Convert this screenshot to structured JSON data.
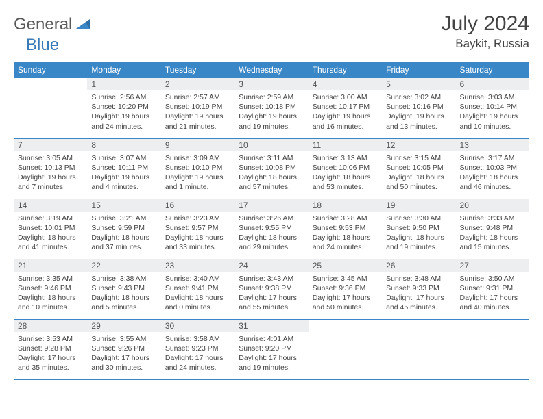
{
  "logo": {
    "part1": "General",
    "part2": "Blue"
  },
  "title": "July 2024",
  "location": "Baykit, Russia",
  "colors": {
    "header_bg": "#3a87c7",
    "header_text": "#ffffff",
    "daynum_bg": "#eceef0",
    "daynum_text": "#555555",
    "body_text": "#444444",
    "row_border": "#3a87c7",
    "logo_gray": "#5a5a5a",
    "logo_blue": "#3a7ab8"
  },
  "weekdays": [
    "Sunday",
    "Monday",
    "Tuesday",
    "Wednesday",
    "Thursday",
    "Friday",
    "Saturday"
  ],
  "weeks": [
    [
      {
        "n": "",
        "sr": "",
        "ss": "",
        "dl": ""
      },
      {
        "n": "1",
        "sr": "Sunrise: 2:56 AM",
        "ss": "Sunset: 10:20 PM",
        "dl": "Daylight: 19 hours and 24 minutes."
      },
      {
        "n": "2",
        "sr": "Sunrise: 2:57 AM",
        "ss": "Sunset: 10:19 PM",
        "dl": "Daylight: 19 hours and 21 minutes."
      },
      {
        "n": "3",
        "sr": "Sunrise: 2:59 AM",
        "ss": "Sunset: 10:18 PM",
        "dl": "Daylight: 19 hours and 19 minutes."
      },
      {
        "n": "4",
        "sr": "Sunrise: 3:00 AM",
        "ss": "Sunset: 10:17 PM",
        "dl": "Daylight: 19 hours and 16 minutes."
      },
      {
        "n": "5",
        "sr": "Sunrise: 3:02 AM",
        "ss": "Sunset: 10:16 PM",
        "dl": "Daylight: 19 hours and 13 minutes."
      },
      {
        "n": "6",
        "sr": "Sunrise: 3:03 AM",
        "ss": "Sunset: 10:14 PM",
        "dl": "Daylight: 19 hours and 10 minutes."
      }
    ],
    [
      {
        "n": "7",
        "sr": "Sunrise: 3:05 AM",
        "ss": "Sunset: 10:13 PM",
        "dl": "Daylight: 19 hours and 7 minutes."
      },
      {
        "n": "8",
        "sr": "Sunrise: 3:07 AM",
        "ss": "Sunset: 10:11 PM",
        "dl": "Daylight: 19 hours and 4 minutes."
      },
      {
        "n": "9",
        "sr": "Sunrise: 3:09 AM",
        "ss": "Sunset: 10:10 PM",
        "dl": "Daylight: 19 hours and 1 minute."
      },
      {
        "n": "10",
        "sr": "Sunrise: 3:11 AM",
        "ss": "Sunset: 10:08 PM",
        "dl": "Daylight: 18 hours and 57 minutes."
      },
      {
        "n": "11",
        "sr": "Sunrise: 3:13 AM",
        "ss": "Sunset: 10:06 PM",
        "dl": "Daylight: 18 hours and 53 minutes."
      },
      {
        "n": "12",
        "sr": "Sunrise: 3:15 AM",
        "ss": "Sunset: 10:05 PM",
        "dl": "Daylight: 18 hours and 50 minutes."
      },
      {
        "n": "13",
        "sr": "Sunrise: 3:17 AM",
        "ss": "Sunset: 10:03 PM",
        "dl": "Daylight: 18 hours and 46 minutes."
      }
    ],
    [
      {
        "n": "14",
        "sr": "Sunrise: 3:19 AM",
        "ss": "Sunset: 10:01 PM",
        "dl": "Daylight: 18 hours and 41 minutes."
      },
      {
        "n": "15",
        "sr": "Sunrise: 3:21 AM",
        "ss": "Sunset: 9:59 PM",
        "dl": "Daylight: 18 hours and 37 minutes."
      },
      {
        "n": "16",
        "sr": "Sunrise: 3:23 AM",
        "ss": "Sunset: 9:57 PM",
        "dl": "Daylight: 18 hours and 33 minutes."
      },
      {
        "n": "17",
        "sr": "Sunrise: 3:26 AM",
        "ss": "Sunset: 9:55 PM",
        "dl": "Daylight: 18 hours and 29 minutes."
      },
      {
        "n": "18",
        "sr": "Sunrise: 3:28 AM",
        "ss": "Sunset: 9:53 PM",
        "dl": "Daylight: 18 hours and 24 minutes."
      },
      {
        "n": "19",
        "sr": "Sunrise: 3:30 AM",
        "ss": "Sunset: 9:50 PM",
        "dl": "Daylight: 18 hours and 19 minutes."
      },
      {
        "n": "20",
        "sr": "Sunrise: 3:33 AM",
        "ss": "Sunset: 9:48 PM",
        "dl": "Daylight: 18 hours and 15 minutes."
      }
    ],
    [
      {
        "n": "21",
        "sr": "Sunrise: 3:35 AM",
        "ss": "Sunset: 9:46 PM",
        "dl": "Daylight: 18 hours and 10 minutes."
      },
      {
        "n": "22",
        "sr": "Sunrise: 3:38 AM",
        "ss": "Sunset: 9:43 PM",
        "dl": "Daylight: 18 hours and 5 minutes."
      },
      {
        "n": "23",
        "sr": "Sunrise: 3:40 AM",
        "ss": "Sunset: 9:41 PM",
        "dl": "Daylight: 18 hours and 0 minutes."
      },
      {
        "n": "24",
        "sr": "Sunrise: 3:43 AM",
        "ss": "Sunset: 9:38 PM",
        "dl": "Daylight: 17 hours and 55 minutes."
      },
      {
        "n": "25",
        "sr": "Sunrise: 3:45 AM",
        "ss": "Sunset: 9:36 PM",
        "dl": "Daylight: 17 hours and 50 minutes."
      },
      {
        "n": "26",
        "sr": "Sunrise: 3:48 AM",
        "ss": "Sunset: 9:33 PM",
        "dl": "Daylight: 17 hours and 45 minutes."
      },
      {
        "n": "27",
        "sr": "Sunrise: 3:50 AM",
        "ss": "Sunset: 9:31 PM",
        "dl": "Daylight: 17 hours and 40 minutes."
      }
    ],
    [
      {
        "n": "28",
        "sr": "Sunrise: 3:53 AM",
        "ss": "Sunset: 9:28 PM",
        "dl": "Daylight: 17 hours and 35 minutes."
      },
      {
        "n": "29",
        "sr": "Sunrise: 3:55 AM",
        "ss": "Sunset: 9:26 PM",
        "dl": "Daylight: 17 hours and 30 minutes."
      },
      {
        "n": "30",
        "sr": "Sunrise: 3:58 AM",
        "ss": "Sunset: 9:23 PM",
        "dl": "Daylight: 17 hours and 24 minutes."
      },
      {
        "n": "31",
        "sr": "Sunrise: 4:01 AM",
        "ss": "Sunset: 9:20 PM",
        "dl": "Daylight: 17 hours and 19 minutes."
      },
      {
        "n": "",
        "sr": "",
        "ss": "",
        "dl": ""
      },
      {
        "n": "",
        "sr": "",
        "ss": "",
        "dl": ""
      },
      {
        "n": "",
        "sr": "",
        "ss": "",
        "dl": ""
      }
    ]
  ]
}
